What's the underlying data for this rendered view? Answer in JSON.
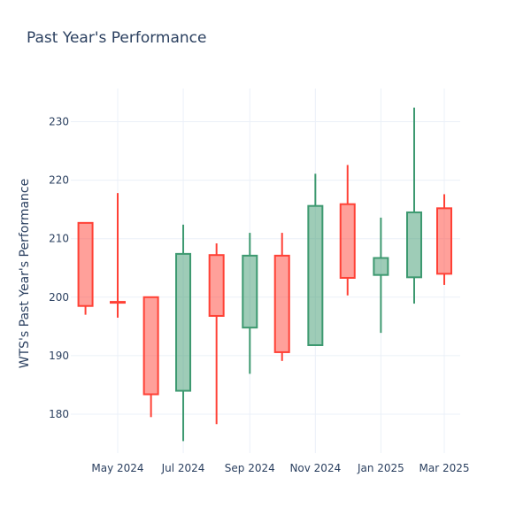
{
  "chart_data": {
    "type": "candlestick",
    "title": "Past Year's Performance",
    "xlabel": "",
    "ylabel": "WTS's Past Year's Performance",
    "ylim": [
      172.5,
      236
    ],
    "y_ticks": [
      180,
      190,
      200,
      210,
      220,
      230
    ],
    "x_ticks": [
      {
        "date": "2024-05-01",
        "label": "May 2024"
      },
      {
        "date": "2024-07-01",
        "label": "Jul 2024"
      },
      {
        "date": "2024-09-01",
        "label": "Sep 2024"
      },
      {
        "date": "2024-11-01",
        "label": "Nov 2024"
      },
      {
        "date": "2025-01-01",
        "label": "Jan 2025"
      },
      {
        "date": "2025-03-01",
        "label": "Mar 2025"
      }
    ],
    "grid": true,
    "increasing_color": "#3d9970",
    "decreasing_color": "#ff4136",
    "candles": [
      {
        "date": "2024-04-01",
        "open": 212.7,
        "high": 212.7,
        "low": 197.0,
        "close": 198.5
      },
      {
        "date": "2024-05-01",
        "open": 199.2,
        "high": 217.8,
        "low": 196.5,
        "close": 199.1
      },
      {
        "date": "2024-06-01",
        "open": 200.0,
        "high": 200.0,
        "low": 179.5,
        "close": 183.4
      },
      {
        "date": "2024-07-01",
        "open": 184.0,
        "high": 212.4,
        "low": 175.4,
        "close": 207.4
      },
      {
        "date": "2024-08-01",
        "open": 207.2,
        "high": 209.2,
        "low": 178.3,
        "close": 196.8
      },
      {
        "date": "2024-09-01",
        "open": 194.8,
        "high": 211.0,
        "low": 186.9,
        "close": 207.1
      },
      {
        "date": "2024-10-01",
        "open": 207.1,
        "high": 211.0,
        "low": 189.1,
        "close": 190.6
      },
      {
        "date": "2024-11-01",
        "open": 191.8,
        "high": 221.1,
        "low": 191.8,
        "close": 215.6
      },
      {
        "date": "2024-12-01",
        "open": 215.9,
        "high": 222.6,
        "low": 200.3,
        "close": 203.3
      },
      {
        "date": "2025-01-01",
        "open": 203.8,
        "high": 213.6,
        "low": 193.9,
        "close": 206.7
      },
      {
        "date": "2025-02-01",
        "open": 203.4,
        "high": 232.4,
        "low": 198.9,
        "close": 214.5
      },
      {
        "date": "2025-03-01",
        "open": 215.2,
        "high": 217.6,
        "low": 202.1,
        "close": 204.0
      }
    ]
  }
}
